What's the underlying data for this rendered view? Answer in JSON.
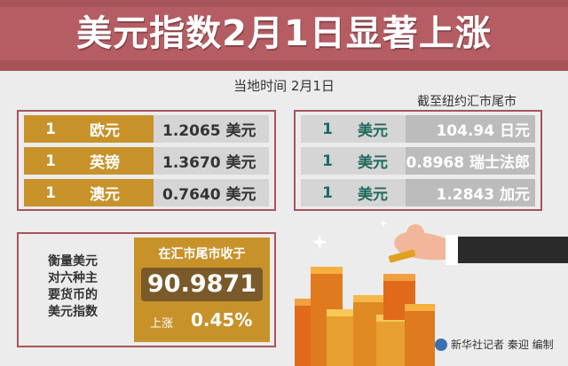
{
  "header": {
    "title": "美元指数2月1日显著上涨"
  },
  "subtitle": "当地时间  2月1日",
  "note": "截至纽约汇市尾市",
  "left_rows": [
    {
      "qty": "1",
      "currency": "欧元",
      "value": "1.2065  美元"
    },
    {
      "qty": "1",
      "currency": "英镑",
      "value": "1.3670  美元"
    },
    {
      "qty": "1",
      "currency": "澳元",
      "value": "0.7640  美元"
    }
  ],
  "right_rows": [
    {
      "qty": "1",
      "currency": "美元",
      "value": "104.94 日元"
    },
    {
      "qty": "1",
      "currency": "美元",
      "value": "0.8968 瑞士法郎"
    },
    {
      "qty": "1",
      "currency": "美元",
      "value": "1.2843 加元"
    }
  ],
  "index": {
    "description_lines": [
      "衡量美元",
      "对六种主",
      "要货币的",
      "美元指数"
    ],
    "caption": "在汇市尾市收于",
    "value": "90.9871",
    "rise_label": "上涨",
    "rise_value": "0.45%"
  },
  "credit": "新华社记者 秦迎 编制",
  "icons": [
    "coin-stack-icon",
    "hand-icon",
    "sparkle-icon",
    "xinhua-logo-icon"
  ],
  "colors": {
    "accent": "#a6545a",
    "gold": "#c8922a",
    "teal": "#1e6b5c",
    "dark_gold": "#7a5a2a"
  }
}
